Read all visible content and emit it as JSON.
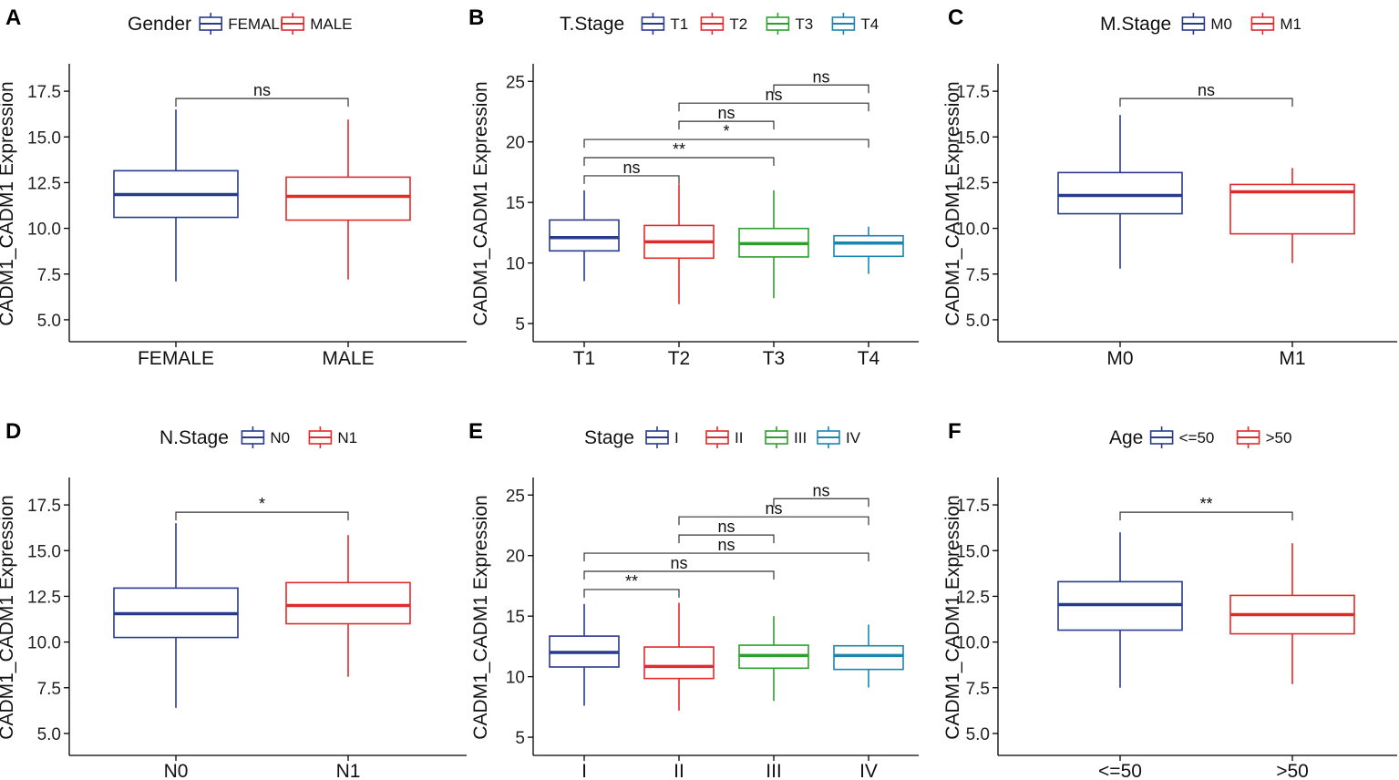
{
  "chart_data": [
    {
      "panel": "A",
      "type": "box",
      "legend_title": "Gender",
      "ylabel": "CADM1_CADM1 Expression",
      "ylim": [
        3.8,
        18.9
      ],
      "yticks": [
        5.0,
        7.5,
        10.0,
        12.5,
        15.0,
        17.5
      ],
      "tick_labels": [
        "5.0",
        "7.5",
        "10.0",
        "12.5",
        "15.0",
        "17.5"
      ],
      "groups": [
        {
          "name": "FEMALE",
          "color": "#283a8c",
          "min": 7.1,
          "q1": 10.6,
          "median": 11.85,
          "q3": 13.15,
          "max": 16.5
        },
        {
          "name": "MALE",
          "color": "#e02b2b",
          "min": 7.2,
          "q1": 10.45,
          "median": 11.75,
          "q3": 12.8,
          "max": 15.95
        }
      ],
      "comparisons": [
        {
          "g1": 0,
          "g2": 1,
          "label": "ns",
          "y": 17.1
        }
      ]
    },
    {
      "panel": "B",
      "type": "box",
      "legend_title": "T.Stage",
      "ylabel": "CADM1_CADM1 Expression",
      "ylim": [
        3.5,
        26.3
      ],
      "yticks": [
        5,
        10,
        15,
        20,
        25
      ],
      "tick_labels": [
        "5",
        "10",
        "15",
        "20",
        "25"
      ],
      "groups": [
        {
          "name": "T1",
          "color": "#283a8c",
          "min": 8.5,
          "q1": 11.0,
          "median": 12.1,
          "q3": 13.55,
          "max": 16.0
        },
        {
          "name": "T2",
          "color": "#e02b2b",
          "min": 6.6,
          "q1": 10.4,
          "median": 11.75,
          "q3": 13.1,
          "max": 16.5
        },
        {
          "name": "T3",
          "color": "#2ca02c",
          "min": 7.1,
          "q1": 10.5,
          "median": 11.6,
          "q3": 12.85,
          "max": 16.0
        },
        {
          "name": "T4",
          "color": "#1a86b0",
          "min": 9.1,
          "q1": 10.55,
          "median": 11.65,
          "q3": 12.25,
          "max": 13.0
        }
      ],
      "comparisons": [
        {
          "g1": 0,
          "g2": 1,
          "label": "ns",
          "y": 17.2
        },
        {
          "g1": 0,
          "g2": 2,
          "label": "**",
          "y": 18.7
        },
        {
          "g1": 0,
          "g2": 3,
          "label": "*",
          "y": 20.2
        },
        {
          "g1": 1,
          "g2": 2,
          "label": "ns",
          "y": 21.7
        },
        {
          "g1": 1,
          "g2": 3,
          "label": "ns",
          "y": 23.2
        },
        {
          "g1": 2,
          "g2": 3,
          "label": "ns",
          "y": 24.7
        }
      ]
    },
    {
      "panel": "C",
      "type": "box",
      "legend_title": "M.Stage",
      "ylabel": "CADM1_CADM1 Expression",
      "ylim": [
        3.8,
        18.9
      ],
      "yticks": [
        5.0,
        7.5,
        10.0,
        12.5,
        15.0,
        17.5
      ],
      "tick_labels": [
        "5.0",
        "7.5",
        "10.0",
        "12.5",
        "15.0",
        "17.5"
      ],
      "groups": [
        {
          "name": "M0",
          "color": "#283a8c",
          "min": 7.8,
          "q1": 10.8,
          "median": 11.8,
          "q3": 13.05,
          "max": 16.2
        },
        {
          "name": "M1",
          "color": "#e02b2b",
          "min": 8.1,
          "q1": 9.7,
          "median": 12.0,
          "q3": 12.4,
          "max": 13.3
        }
      ],
      "comparisons": [
        {
          "g1": 0,
          "g2": 1,
          "label": "ns",
          "y": 17.1
        }
      ]
    },
    {
      "panel": "D",
      "type": "box",
      "legend_title": "N.Stage",
      "ylabel": "CADM1_CADM1 Expression",
      "ylim": [
        3.8,
        18.9
      ],
      "yticks": [
        5.0,
        7.5,
        10.0,
        12.5,
        15.0,
        17.5
      ],
      "tick_labels": [
        "5.0",
        "7.5",
        "10.0",
        "12.5",
        "15.0",
        "17.5"
      ],
      "groups": [
        {
          "name": "N0",
          "color": "#283a8c",
          "min": 6.4,
          "q1": 10.25,
          "median": 11.55,
          "q3": 12.95,
          "max": 16.5
        },
        {
          "name": "N1",
          "color": "#e02b2b",
          "min": 8.1,
          "q1": 11.0,
          "median": 12.0,
          "q3": 13.25,
          "max": 15.85
        }
      ],
      "comparisons": [
        {
          "g1": 0,
          "g2": 1,
          "label": "*",
          "y": 17.1
        }
      ]
    },
    {
      "panel": "E",
      "type": "box",
      "legend_title": "Stage",
      "ylabel": "CADM1_CADM1 Expression",
      "ylim": [
        3.5,
        26.3
      ],
      "yticks": [
        5,
        10,
        15,
        20,
        25
      ],
      "tick_labels": [
        "5",
        "10",
        "15",
        "20",
        "25"
      ],
      "groups": [
        {
          "name": "I",
          "color": "#283a8c",
          "min": 7.6,
          "q1": 10.8,
          "median": 12.0,
          "q3": 13.35,
          "max": 16.0
        },
        {
          "name": "II",
          "color": "#e02b2b",
          "min": 7.2,
          "q1": 9.85,
          "median": 10.85,
          "q3": 12.45,
          "max": 16.1
        },
        {
          "name": "III",
          "color": "#2ca02c",
          "min": 8.0,
          "q1": 10.7,
          "median": 11.75,
          "q3": 12.6,
          "max": 15.0
        },
        {
          "name": "IV",
          "color": "#1a86b0",
          "min": 9.1,
          "q1": 10.6,
          "median": 11.75,
          "q3": 12.55,
          "max": 14.3
        }
      ],
      "comparisons": [
        {
          "g1": 0,
          "g2": 1,
          "label": "**",
          "y": 17.2
        },
        {
          "g1": 0,
          "g2": 2,
          "label": "ns",
          "y": 18.7
        },
        {
          "g1": 0,
          "g2": 3,
          "label": "ns",
          "y": 20.2
        },
        {
          "g1": 1,
          "g2": 2,
          "label": "ns",
          "y": 21.7
        },
        {
          "g1": 1,
          "g2": 3,
          "label": "ns",
          "y": 23.2
        },
        {
          "g1": 2,
          "g2": 3,
          "label": "ns",
          "y": 24.7
        }
      ]
    },
    {
      "panel": "F",
      "type": "box",
      "legend_title": "Age",
      "ylabel": "CADM1_CADM1 Expression",
      "ylim": [
        3.8,
        18.9
      ],
      "yticks": [
        5.0,
        7.5,
        10.0,
        12.5,
        15.0,
        17.5
      ],
      "tick_labels": [
        "5.0",
        "7.5",
        "10.0",
        "12.5",
        "15.0",
        "17.5"
      ],
      "groups": [
        {
          "name": "<=50",
          "color": "#283a8c",
          "min": 7.5,
          "q1": 10.65,
          "median": 12.05,
          "q3": 13.3,
          "max": 16.0
        },
        {
          "name": ">50",
          "color": "#e02b2b",
          "min": 7.7,
          "q1": 10.45,
          "median": 11.5,
          "q3": 12.55,
          "max": 15.4
        }
      ],
      "comparisons": [
        {
          "g1": 0,
          "g2": 1,
          "label": "**",
          "y": 17.1
        }
      ]
    }
  ]
}
